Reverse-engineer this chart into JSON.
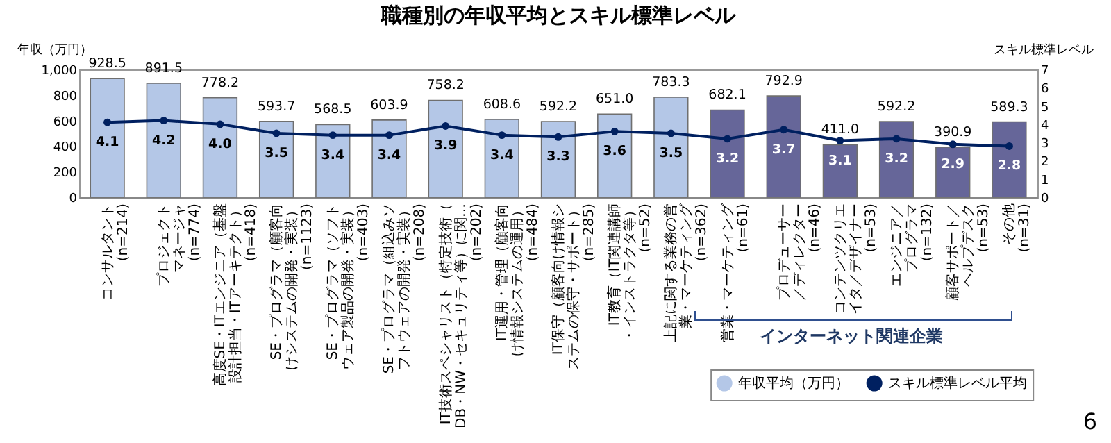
{
  "chart_data": {
    "type": "bar",
    "title": "職種別の年収平均とスキル標準レベル",
    "ylabel": "年収（万円）",
    "y2label": "スキル標準レベル",
    "categories": [
      "コンサルタント(n=214)",
      "プロジェクトマネージャ(n=774)",
      "高度SE・ITエンジニア（基盤設計担当・ITアーキテクト）(n=418)",
      "SE・プログラマ（顧客向けシステムの開発・実装）(n=1123)",
      "SE・プログラマ（ソフトウェア製品の開発・実装）(n=403)",
      "SE・プログラマ（組込みソフトウェアの開発・実装）(n=208)",
      "IT技術スペシャリスト（特定技術（DB・NW・セキュリティ等）に関…(n=202)",
      "IT運用・管理（顧客向け情報システムの運用）(n=484)",
      "IT保守（顧客向け情報システムの保守・サポート）(n=285)",
      "IT教育（IT関連講師・インストラクタ等）(n=52)",
      "上記に関する業務の営業・マーケティング(n=362)",
      "営業・マーケティング(n=61)",
      "プロデューサー／ディレクター(n=46)",
      "コンテンツクリエイタ／デザイナー(n=53)",
      "エンジニア／プログラマ(n=132)",
      "顧客サポート／ヘルプデスク(n=53)",
      "その他(n=31)"
    ],
    "series": [
      {
        "name": "年収平均（万円）",
        "value_labels": [
          "928.5",
          "891.5",
          "778.2",
          "593.7",
          "568.5",
          "603.9",
          "758.2",
          "608.6",
          "592.2",
          "651.0",
          "783.3",
          "682.1",
          "792.9",
          "411.0",
          "592.2",
          "390.9",
          "589.3"
        ],
        "color": "#b4c7e7",
        "colors": [
          "#b4c7e7",
          "#b4c7e7",
          "#b4c7e7",
          "#b4c7e7",
          "#b4c7e7",
          "#b4c7e7",
          "#b4c7e7",
          "#b4c7e7",
          "#b4c7e7",
          "#b4c7e7",
          "#b4c7e7",
          "#666699",
          "#666699",
          "#666699",
          "#666699",
          "#666699",
          "#666699"
        ],
        "values": [
          928.5,
          891.5,
          778.2,
          593.7,
          568.5,
          603.9,
          758.2,
          608.6,
          592.2,
          651.0,
          783.3,
          682.1,
          792.9,
          411.0,
          592.2,
          390.9,
          589.3
        ]
      },
      {
        "name": "スキル標準レベル平均",
        "type": "line",
        "axis": "y2",
        "color": "#002060",
        "value_labels": [
          "4.1",
          "4.2",
          "4.0",
          "3.5",
          "3.4",
          "3.4",
          "3.9",
          "3.4",
          "3.3",
          "3.6",
          "3.5",
          "3.2",
          "3.7",
          "3.1",
          "3.2",
          "2.9",
          "2.8"
        ],
        "values": [
          4.1,
          4.2,
          4.0,
          3.5,
          3.4,
          3.4,
          3.9,
          3.4,
          3.3,
          3.6,
          3.5,
          3.2,
          3.7,
          3.1,
          3.2,
          2.9,
          2.8
        ]
      }
    ],
    "ylim": [
      0,
      1000
    ],
    "yticks": [
      0,
      200,
      400,
      600,
      800,
      {
        "value": 1000,
        "label": "1,000"
      }
    ],
    "y2lim": [
      0,
      7
    ],
    "y2ticks": [
      0,
      1,
      2,
      3,
      4,
      5,
      6,
      7
    ],
    "marker": "circle",
    "legend": "bottom",
    "grid": false,
    "annotations": [
      "インターネット関連企業",
      "6"
    ]
  }
}
